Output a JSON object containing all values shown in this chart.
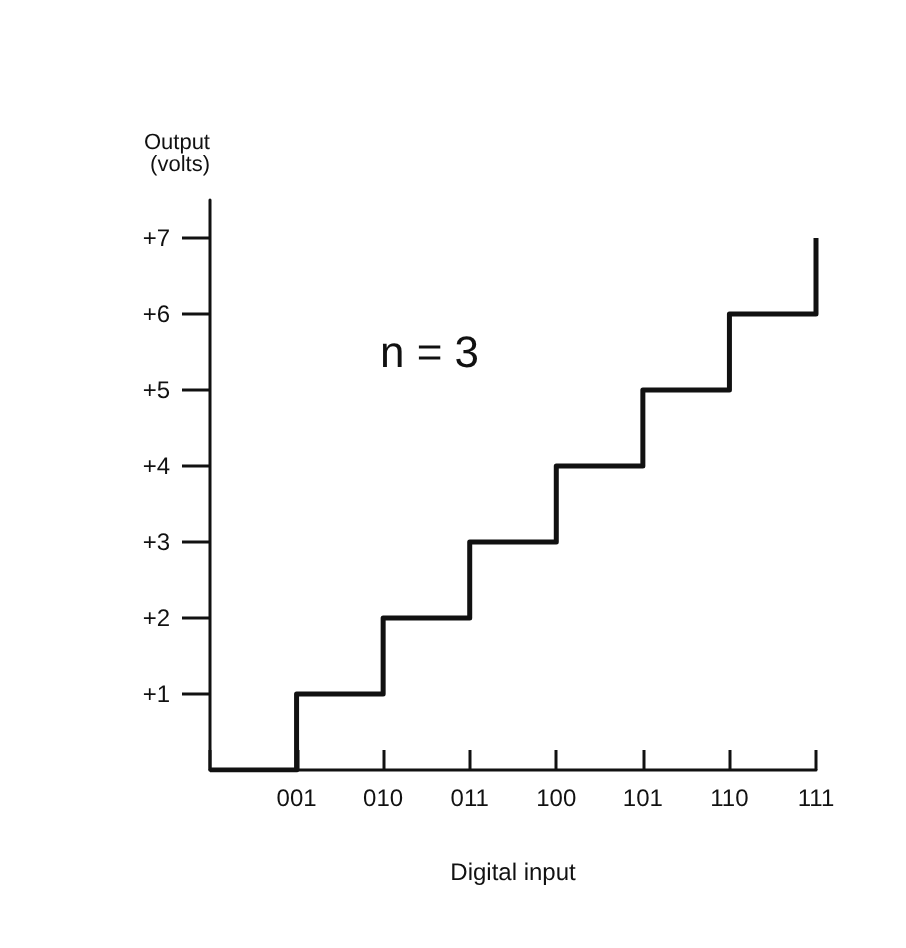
{
  "chart_data": {
    "type": "step",
    "xlabel": "Digital input",
    "ylabel": "Output\n(volts)",
    "categories": [
      null,
      "001",
      "010",
      "011",
      "100",
      "101",
      "110",
      "111"
    ],
    "values": [
      0,
      1,
      2,
      3,
      4,
      5,
      6,
      7
    ],
    "color": "#111111",
    "ylim": [
      0,
      7.5
    ],
    "yticks": [
      {
        "value": 1,
        "label": "+1"
      },
      {
        "value": 2,
        "label": "+2"
      },
      {
        "value": 3,
        "label": "+3"
      },
      {
        "value": 4,
        "label": "+4"
      },
      {
        "value": 5,
        "label": "+5"
      },
      {
        "value": 6,
        "label": "+6"
      },
      {
        "value": 7,
        "label": "+7"
      }
    ],
    "annotations": [
      "n = 3"
    ],
    "grid": false,
    "marker": "none",
    "line_style": "solid"
  }
}
